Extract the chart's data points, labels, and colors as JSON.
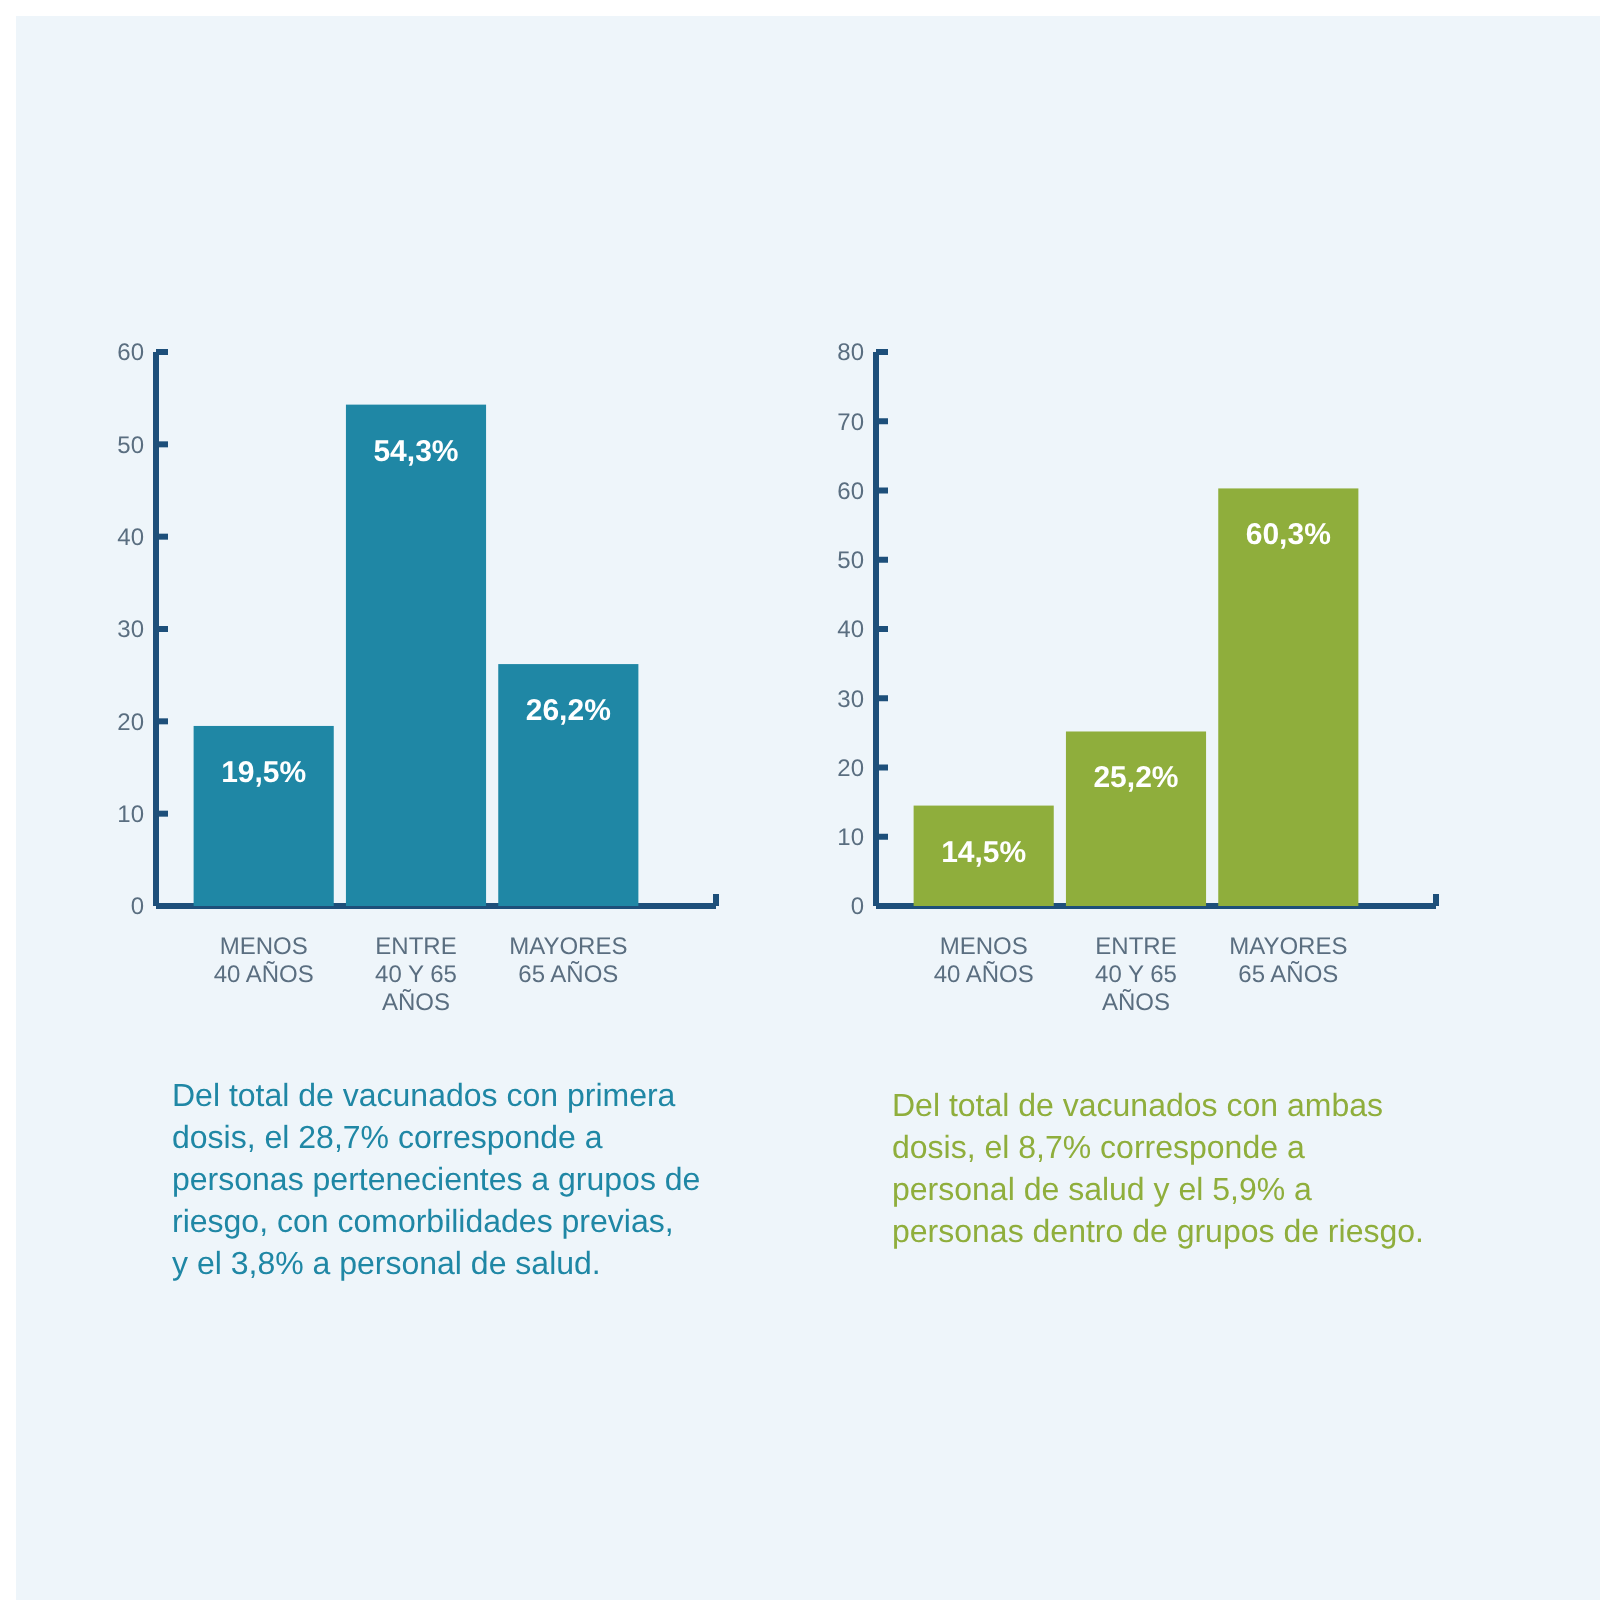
{
  "chart_data": [
    {
      "type": "bar",
      "categories": [
        "MENOS\n40 AÑOS",
        "ENTRE\n40 Y 65\nAÑOS",
        "MAYORES\n65 AÑOS"
      ],
      "values": [
        19.5,
        54.3,
        26.2
      ],
      "value_labels": [
        "19,5%",
        "54,3%",
        "26,2%"
      ],
      "color": "#1f87a5",
      "ylim": [
        0,
        60
      ],
      "yticks": [
        0,
        10,
        20,
        30,
        40,
        50,
        60
      ],
      "annotations": [
        "Del total de vacunados con primera dosis, el 28,7% corresponde a personas pertenecientes a grupos de riesgo, con comorbilidades previas, y el 3,8% a personal de salud."
      ]
    },
    {
      "type": "bar",
      "categories": [
        "MENOS\n40 AÑOS",
        "ENTRE\n40 Y 65\nAÑOS",
        "MAYORES\n65 AÑOS"
      ],
      "values": [
        14.5,
        25.2,
        60.3
      ],
      "value_labels": [
        "14,5%",
        "25,2%",
        "60,3%"
      ],
      "color": "#8fae3c",
      "ylim": [
        0,
        80
      ],
      "yticks": [
        0,
        10,
        20,
        30,
        40,
        50,
        60,
        70,
        80
      ],
      "annotations": [
        "Del total de vacunados con ambas dosis, el 8,7% corresponde a personal de salud y el 5,9% a personas dentro de grupos de riesgo."
      ]
    }
  ]
}
